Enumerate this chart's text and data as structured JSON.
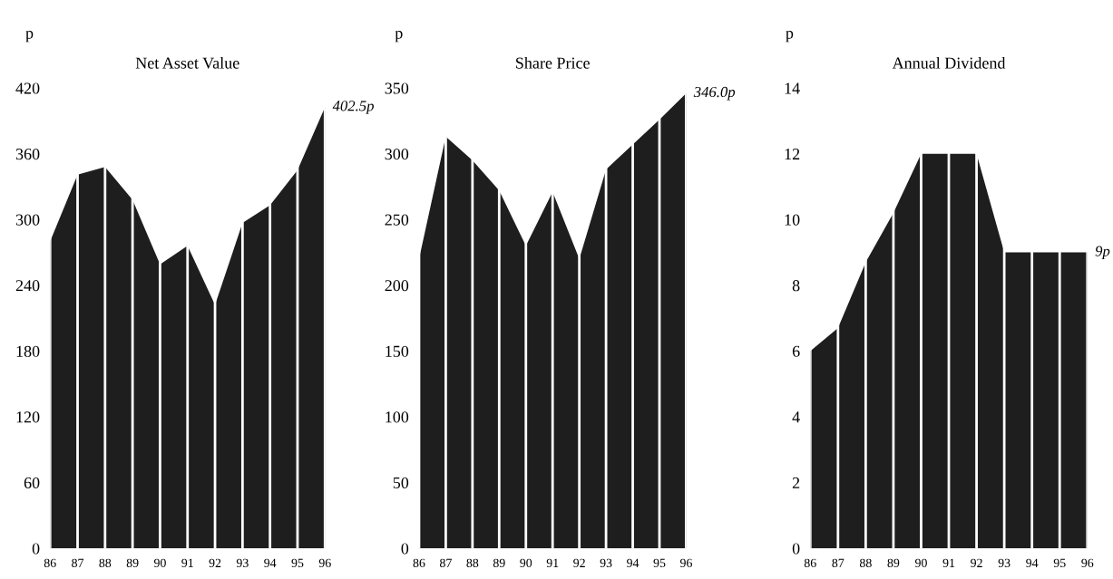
{
  "chart_data": [
    {
      "type": "area",
      "title": "Net Asset Value",
      "ylabel": "p",
      "categories": [
        "86",
        "87",
        "88",
        "89",
        "90",
        "91",
        "92",
        "93",
        "94",
        "95",
        "96"
      ],
      "series": [
        {
          "color": "#1e1e1e",
          "values": [
            280,
            341,
            348,
            318,
            259,
            276,
            222,
            297,
            313,
            345,
            402.5
          ]
        }
      ],
      "ylim": [
        0,
        420
      ],
      "yticks": [
        0,
        60,
        120,
        180,
        240,
        300,
        360,
        420
      ],
      "grid": "x",
      "annotations": [
        {
          "text": "402.5p",
          "x": "96",
          "y": 402.5
        }
      ]
    },
    {
      "type": "area",
      "title": "Share Price",
      "ylabel": "p",
      "categories": [
        "86",
        "87",
        "88",
        "89",
        "90",
        "91",
        "92",
        "93",
        "94",
        "95",
        "96"
      ],
      "series": [
        {
          "color": "#1e1e1e",
          "values": [
            220,
            313,
            295,
            272,
            230,
            271,
            220,
            288,
            307,
            326,
            346
          ]
        }
      ],
      "ylim": [
        0,
        350
      ],
      "yticks": [
        0,
        50,
        100,
        150,
        200,
        250,
        300,
        350
      ],
      "grid": "x",
      "annotations": [
        {
          "text": "346.0p",
          "x": "96",
          "y": 346
        }
      ]
    },
    {
      "type": "area",
      "title": "Annual Dividend",
      "ylabel": "p",
      "categories": [
        "86",
        "87",
        "88",
        "89",
        "90",
        "91",
        "92",
        "93",
        "94",
        "95",
        "96"
      ],
      "series": [
        {
          "color": "#1e1e1e",
          "values": [
            6,
            6.7,
            8.7,
            10.2,
            12,
            12,
            12,
            9,
            9,
            9,
            9
          ]
        }
      ],
      "ylim": [
        0,
        14
      ],
      "yticks": [
        0,
        2,
        4,
        6,
        8,
        10,
        12,
        14
      ],
      "grid": "x",
      "annotations": [
        {
          "text": "9p",
          "x": "96",
          "y": 9
        }
      ]
    }
  ]
}
